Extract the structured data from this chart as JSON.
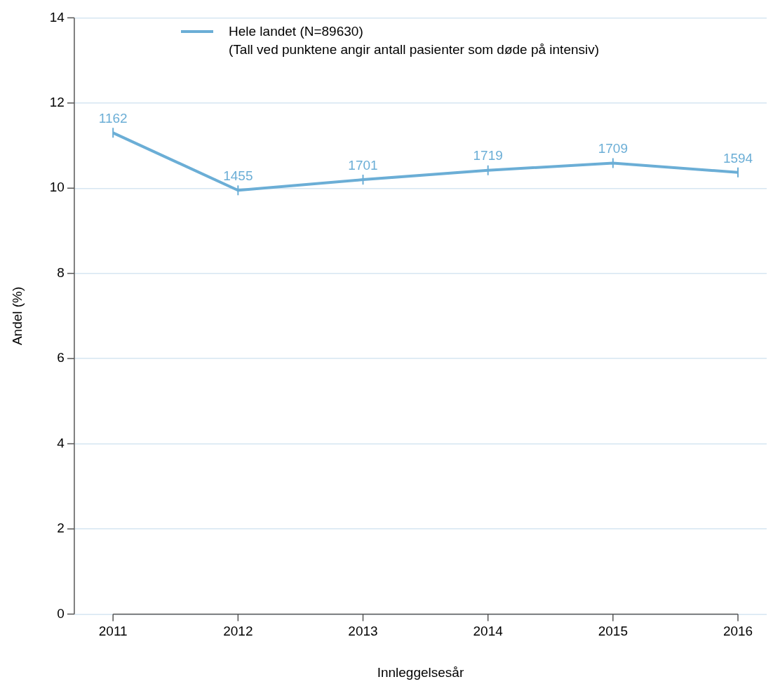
{
  "chart_data": {
    "type": "line",
    "xlabel": "Innleggelsesår",
    "ylabel": "Andel (%)",
    "categories": [
      "2011",
      "2012",
      "2013",
      "2014",
      "2015",
      "2016"
    ],
    "series": [
      {
        "name": "Hele landet (N=89630)",
        "color": "#6baed6",
        "values": [
          11.3,
          9.95,
          10.2,
          10.42,
          10.59,
          10.37
        ]
      }
    ],
    "annotations": [
      "(Tall ved punktene angir antall pasienter som døde på intensiv)",
      {
        "text": "1162",
        "x": "2011",
        "y": 11.3
      },
      {
        "text": "1455",
        "x": "2012",
        "y": 9.95
      },
      {
        "text": "1701",
        "x": "2013",
        "y": 10.2
      },
      {
        "text": "1719",
        "x": "2014",
        "y": 10.42
      },
      {
        "text": "1709",
        "x": "2015",
        "y": 10.59
      },
      {
        "text": "1594",
        "x": "2016",
        "y": 10.37
      }
    ],
    "ylim": [
      0,
      14
    ],
    "yticks": [
      0,
      2,
      4,
      6,
      8,
      10,
      12,
      14
    ],
    "grid": "y",
    "legend": "top"
  }
}
